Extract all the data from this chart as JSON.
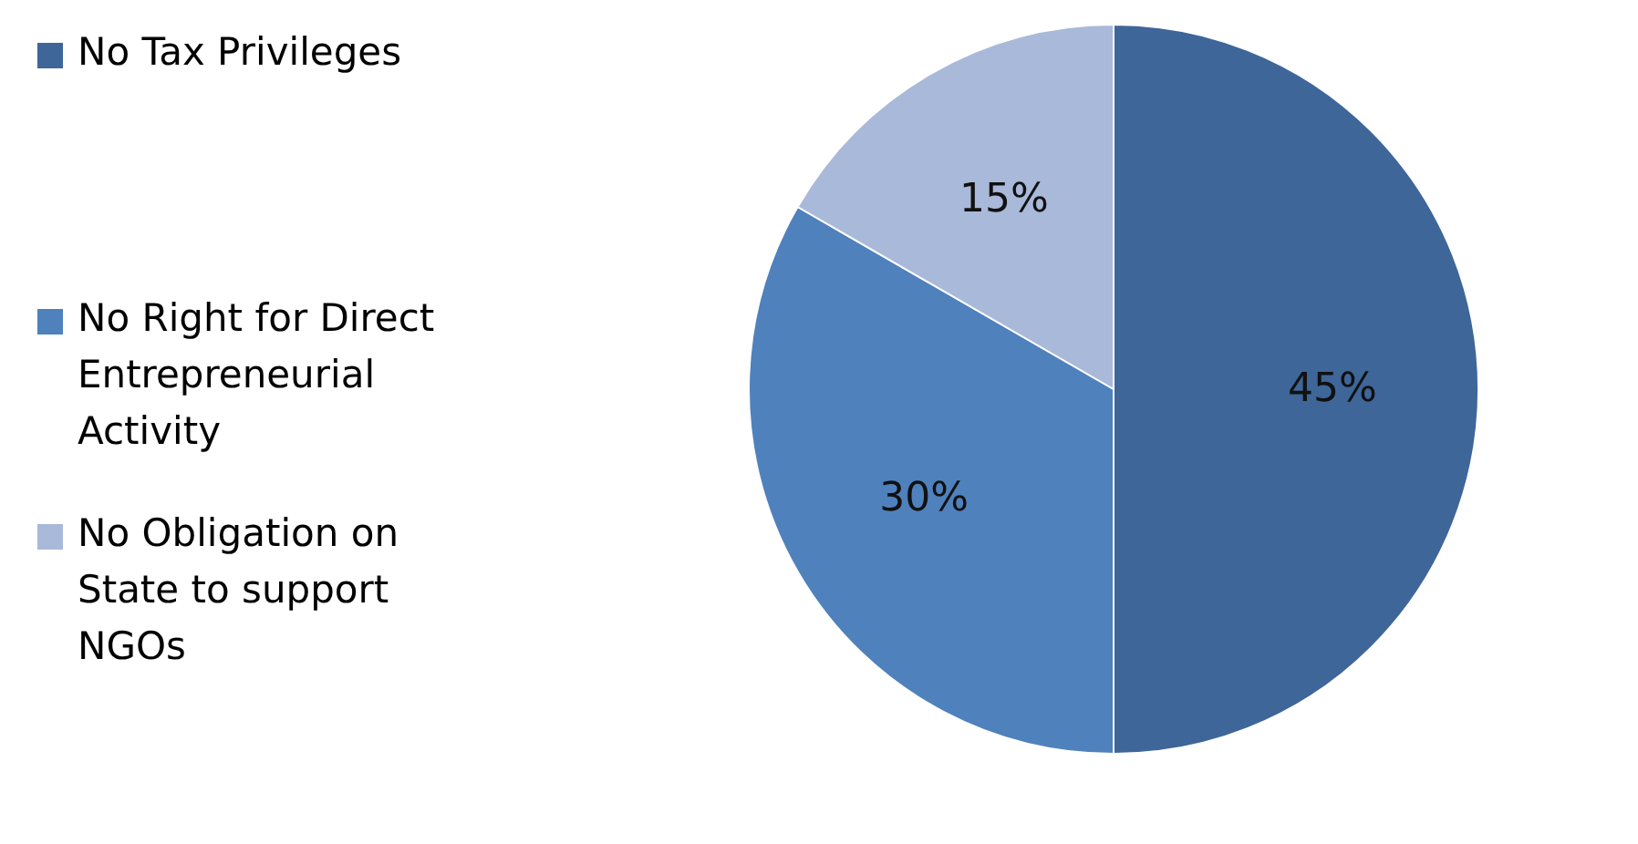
{
  "chart_data": {
    "type": "pie",
    "categories": [
      "No Tax Privileges",
      "No Right for Direct Entrepreneurial Activity",
      "No Obligation on State to support NGOs"
    ],
    "values": [
      45,
      30,
      15
    ],
    "colors": [
      "#3e6699",
      "#4f81bd",
      "#a9b9d9"
    ],
    "value_labels": [
      "45%",
      "30%",
      "15%"
    ],
    "legend": "left"
  }
}
